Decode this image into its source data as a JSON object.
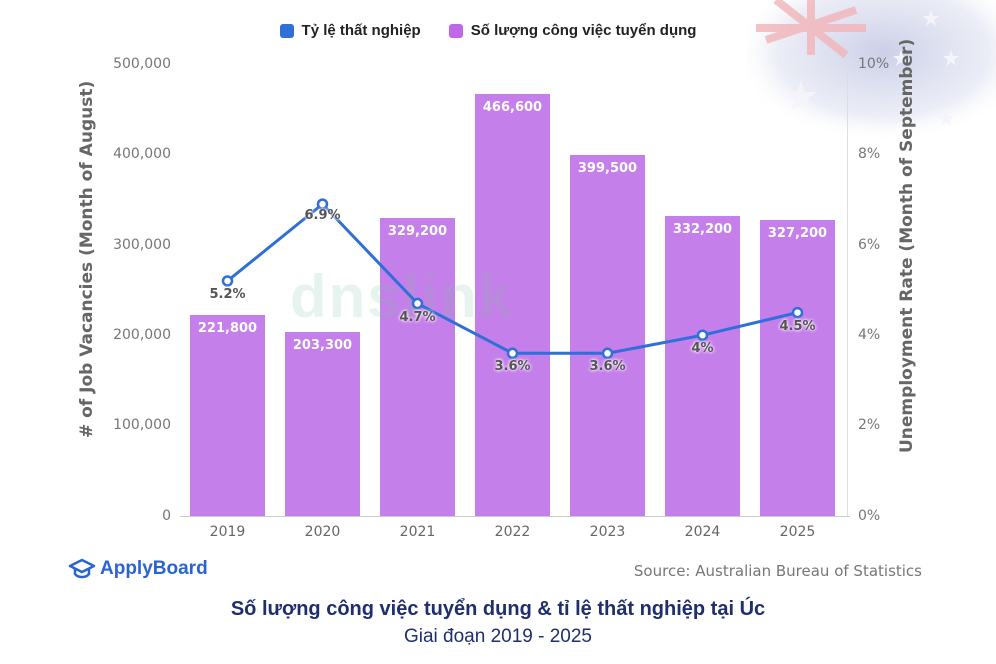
{
  "legend": [
    {
      "label": "Tỷ lệ thất nghiệp",
      "color": "#2f6fd8"
    },
    {
      "label": "Số lượng công việc tuyển dụng",
      "color": "#c066e8"
    }
  ],
  "axes": {
    "left_title": "# of Job Vacancies (Month of August)",
    "right_title": "Unemployment Rate (Month of September)",
    "left_ticks": [
      "0",
      "100,000",
      "200,000",
      "300,000",
      "400,000",
      "500,000"
    ],
    "right_ticks": [
      "0%",
      "2%",
      "4%",
      "6%",
      "8%",
      "10%"
    ]
  },
  "chart_data": {
    "type": "bar+line",
    "categories": [
      "2019",
      "2020",
      "2021",
      "2022",
      "2023",
      "2024",
      "2025"
    ],
    "series": [
      {
        "name": "Số lượng công việc tuyển dụng",
        "type": "bar",
        "axis": "left",
        "color": "#c57fea",
        "values": [
          221800,
          203300,
          329200,
          466600,
          399500,
          332200,
          327200
        ],
        "labels": [
          "221,800",
          "203,300",
          "329,200",
          "466,600",
          "399,500",
          "332,200",
          "327,200"
        ]
      },
      {
        "name": "Tỷ lệ thất nghiệp",
        "type": "line",
        "axis": "right",
        "color": "#2f6fd8",
        "values": [
          5.2,
          6.9,
          4.7,
          3.6,
          3.6,
          4.0,
          4.5
        ],
        "labels": [
          "5.2%",
          "6.9%",
          "4.7%",
          "3.6%",
          "3.6%",
          "4%",
          "4.5%"
        ]
      }
    ],
    "title": "Số lượng công việc tuyển dụng & tỉ lệ thất nghiệp tại Úc",
    "subtitle": "Giai đoạn 2019 - 2025",
    "ylabel": "# of Job Vacancies (Month of August)",
    "y2label": "Unemployment Rate (Month of September)",
    "ylim": [
      0,
      500000
    ],
    "y2lim": [
      0,
      10
    ],
    "legend_position": "top"
  },
  "footer": {
    "brand": "ApplyBoard",
    "source": "Source: Australian Bureau of Statistics"
  },
  "caption": {
    "title": "Số lượng công việc tuyển dụng & tỉ lệ thất nghiệp tại Úc",
    "subtitle": "Giai đoạn 2019 - 2025"
  },
  "watermark": "dnslink"
}
